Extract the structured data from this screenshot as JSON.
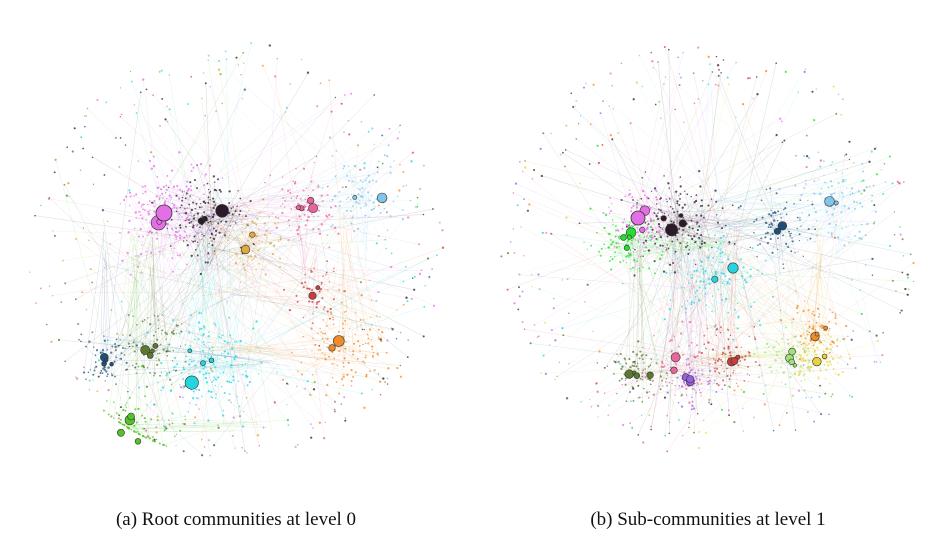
{
  "panels": [
    {
      "id": "a",
      "caption": "(a) Root communities at level 0",
      "communities": [
        {
          "color": "#e36ee6",
          "weight": 1.6
        },
        {
          "color": "#2b1b2b",
          "weight": 1.3
        },
        {
          "color": "#25d4de",
          "weight": 1.4
        },
        {
          "color": "#f08a2a",
          "weight": 1.0
        },
        {
          "color": "#e8659a",
          "weight": 0.7
        },
        {
          "color": "#e0a93a",
          "weight": 0.6
        },
        {
          "color": "#7fc6ea",
          "weight": 0.8
        },
        {
          "color": "#5b7a2e",
          "weight": 0.7
        },
        {
          "color": "#52c42a",
          "weight": 0.8
        },
        {
          "color": "#1f4e79",
          "weight": 0.5
        },
        {
          "color": "#c83d3d",
          "weight": 0.4
        }
      ]
    },
    {
      "id": "b",
      "caption": "(b) Sub-communities at level 1",
      "communities": [
        {
          "color": "#e36ee6",
          "weight": 0.8
        },
        {
          "color": "#2b1b2b",
          "weight": 1.2
        },
        {
          "color": "#24e02c",
          "weight": 0.8
        },
        {
          "color": "#25d4de",
          "weight": 0.9
        },
        {
          "color": "#f08a2a",
          "weight": 0.6
        },
        {
          "color": "#e8659a",
          "weight": 0.7
        },
        {
          "color": "#e8d33a",
          "weight": 0.6
        },
        {
          "color": "#7fc6ea",
          "weight": 0.8
        },
        {
          "color": "#5b7a2e",
          "weight": 0.6
        },
        {
          "color": "#1f4e79",
          "weight": 0.6
        },
        {
          "color": "#c83d3d",
          "weight": 0.6
        },
        {
          "color": "#9a5fe0",
          "weight": 0.5
        },
        {
          "color": "#9ee07a",
          "weight": 0.5
        }
      ]
    }
  ]
}
